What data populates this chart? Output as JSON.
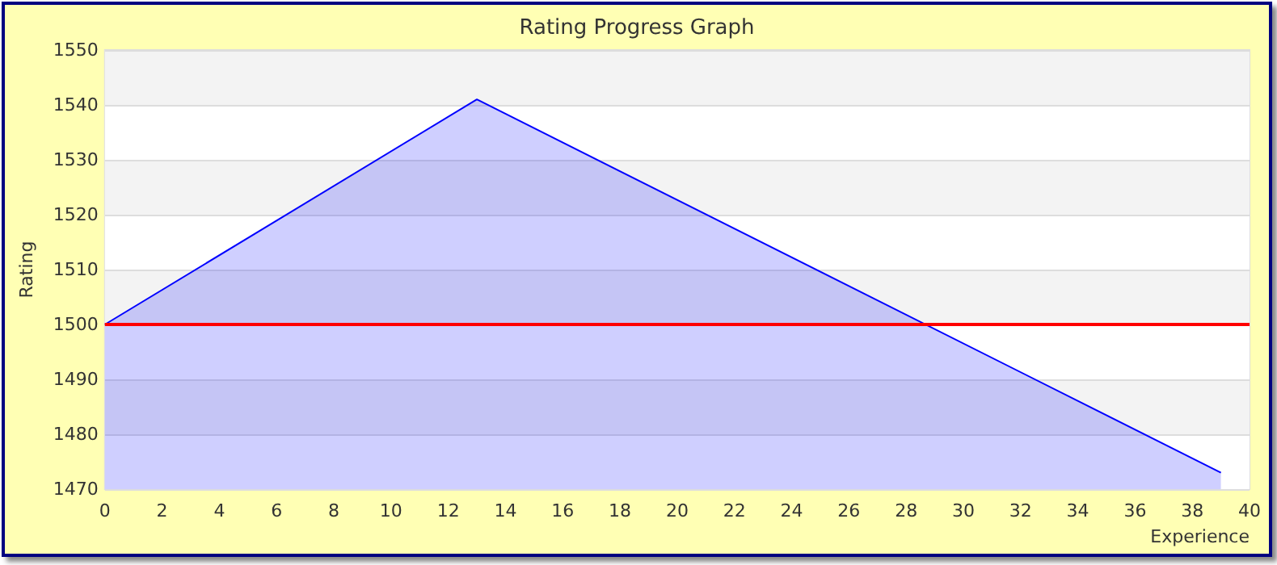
{
  "chart_data": {
    "type": "area",
    "title": "Rating Progress Graph",
    "xlabel": "Experience",
    "ylabel": "Rating",
    "x": [
      0,
      13,
      39
    ],
    "series": [
      {
        "color": "#0000ff",
        "values": [
          1500,
          1541,
          1473
        ]
      }
    ],
    "xlim": [
      0,
      40
    ],
    "xticks": [
      0,
      2,
      4,
      6,
      8,
      10,
      12,
      14,
      16,
      18,
      20,
      22,
      24,
      26,
      28,
      30,
      32,
      34,
      36,
      38,
      40
    ],
    "ylim": [
      1470,
      1550
    ],
    "yticks": [
      1470,
      1480,
      1490,
      1500,
      1510,
      1520,
      1530,
      1540,
      1550
    ],
    "ref_lines": [
      {
        "axis": "y",
        "value": 1500,
        "color": "#ff0000"
      }
    ],
    "grid": "y",
    "marker": "none"
  }
}
